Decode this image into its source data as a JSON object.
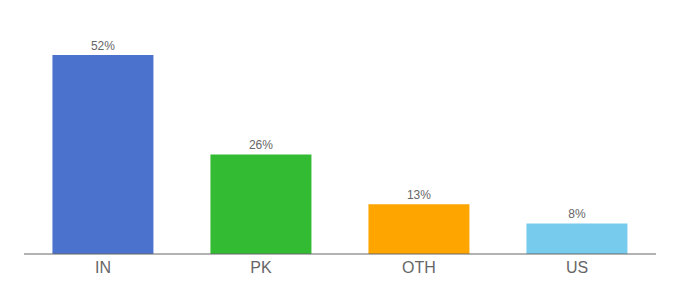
{
  "chart_data": {
    "type": "bar",
    "categories": [
      "IN",
      "PK",
      "OTH",
      "US"
    ],
    "values": [
      52,
      26,
      13,
      8
    ],
    "value_labels": [
      "52%",
      "26%",
      "13%",
      "8%"
    ],
    "colors": [
      "#4B72CC",
      "#33BB33",
      "#FFA500",
      "#77CCEE"
    ],
    "ylim": [
      0,
      58
    ],
    "grid": false,
    "data_labels": true,
    "tick_labels": "x"
  }
}
